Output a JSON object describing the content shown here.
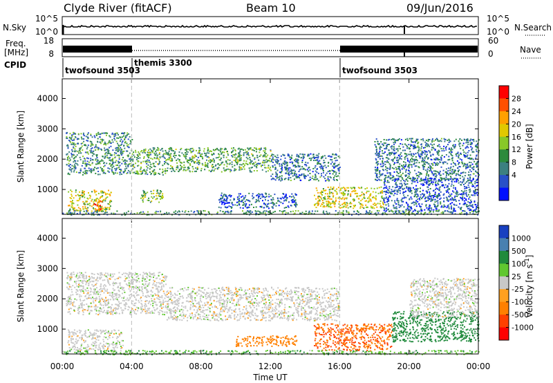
{
  "header": {
    "station": "Clyde River (fitACF)",
    "beam": "Beam 10",
    "date": "09/Jun/2016"
  },
  "top_panel": {
    "left_label": "N.Sky",
    "right_label": "N.Search",
    "left_ticks": [
      "10^5",
      "10^0"
    ],
    "right_ticks": [
      "10^5",
      "10^0"
    ]
  },
  "freq_panel": {
    "left_label_1": "Freq.",
    "left_label_2": "[MHz]",
    "right_label": "Nave",
    "left_ticks": [
      "18",
      "8"
    ],
    "right_ticks": [
      "60",
      "0"
    ]
  },
  "cpid": {
    "label": "CPID",
    "segments": [
      {
        "name": "twofsound 3503",
        "start_hour": 0
      },
      {
        "name": "themis 3300",
        "start_hour": 4
      },
      {
        "name": "twofsound 3503",
        "start_hour": 16
      }
    ]
  },
  "chart_data": [
    {
      "type": "heatmap",
      "title": "",
      "xlabel": "",
      "ylabel": "Slant Range [km]",
      "xlim_hours": [
        0,
        24
      ],
      "ylim": [
        180,
        4650
      ],
      "y_ticks": [
        "1000",
        "2000",
        "3000",
        "4000"
      ],
      "colorbar_label": "Power [dB]",
      "colorbar_ticks": [
        "28",
        "24",
        "20",
        "16",
        "12",
        "8",
        "4"
      ],
      "colorbar_colors": [
        "#ff0000",
        "#ff5000",
        "#ffa000",
        "#e0c800",
        "#88c828",
        "#2c8a3c",
        "#3c8080",
        "#2850c8",
        "#0010ff"
      ],
      "regions": [
        {
          "hours": [
            0.2,
            4.0
          ],
          "range_km": [
            1500,
            2900
          ],
          "level": 12
        },
        {
          "hours": [
            0.3,
            2.8
          ],
          "range_km": [
            300,
            1000
          ],
          "level": 20
        },
        {
          "hours": [
            1.8,
            2.3
          ],
          "range_km": [
            300,
            650
          ],
          "level": 28
        },
        {
          "hours": [
            4.0,
            6.0
          ],
          "range_km": [
            1500,
            2400
          ],
          "level": 14
        },
        {
          "hours": [
            4.5,
            5.8
          ],
          "range_km": [
            600,
            1000
          ],
          "level": 16
        },
        {
          "hours": [
            6.0,
            12.0
          ],
          "range_km": [
            1600,
            2400
          ],
          "level": 14
        },
        {
          "hours": [
            9.0,
            13.5
          ],
          "range_km": [
            400,
            900
          ],
          "level": 8
        },
        {
          "hours": [
            12.0,
            16.0
          ],
          "range_km": [
            1300,
            2200
          ],
          "level": 10
        },
        {
          "hours": [
            14.5,
            18.5
          ],
          "range_km": [
            400,
            1100
          ],
          "level": 20
        },
        {
          "hours": [
            18.0,
            24.0
          ],
          "range_km": [
            1300,
            2700
          ],
          "level": 10
        },
        {
          "hours": [
            18.5,
            24.0
          ],
          "range_km": [
            300,
            1400
          ],
          "level": 8
        },
        {
          "hours": [
            0.0,
            24.0
          ],
          "range_km": [
            180,
            320
          ],
          "level": 12
        }
      ]
    },
    {
      "type": "heatmap",
      "title": "",
      "xlabel": "Time UT",
      "ylabel": "Slant Range [km]",
      "xlim_hours": [
        0,
        24
      ],
      "ylim": [
        180,
        4650
      ],
      "x_ticks": [
        "00:00",
        "04:00",
        "08:00",
        "12:00",
        "16:00",
        "20:00",
        "00:00"
      ],
      "y_ticks": [
        "1000",
        "2000",
        "3000",
        "4000"
      ],
      "colorbar_label": "Velocity [m s^-1]",
      "colorbar_ticks": [
        "1000",
        "500",
        "100",
        "25",
        "-25",
        "-100",
        "-500",
        "-1000"
      ],
      "colorbar_colors": [
        "#1840c0",
        "#4880b0",
        "#208a3c",
        "#60c830",
        "#c8c8c8",
        "#ffa020",
        "#ff8000",
        "#ff4000",
        "#ff0000"
      ],
      "regions": [
        {
          "hours": [
            0.2,
            6.0
          ],
          "range_km": [
            1500,
            2900
          ],
          "velocity": 0
        },
        {
          "hours": [
            0.3,
            3.5
          ],
          "range_km": [
            300,
            1000
          ],
          "velocity": 0
        },
        {
          "hours": [
            6.0,
            16.0
          ],
          "range_km": [
            1300,
            2400
          ],
          "velocity": 0
        },
        {
          "hours": [
            10.0,
            13.5
          ],
          "range_km": [
            450,
            800
          ],
          "velocity": -300
        },
        {
          "hours": [
            14.5,
            19.0
          ],
          "range_km": [
            300,
            1200
          ],
          "velocity": -400
        },
        {
          "hours": [
            19.0,
            24.0
          ],
          "range_km": [
            600,
            1600
          ],
          "velocity": 150
        },
        {
          "hours": [
            20.0,
            24.0
          ],
          "range_km": [
            1400,
            2700
          ],
          "velocity": 0
        },
        {
          "hours": [
            0.0,
            24.0
          ],
          "range_km": [
            180,
            320
          ],
          "velocity": 50
        }
      ]
    }
  ]
}
